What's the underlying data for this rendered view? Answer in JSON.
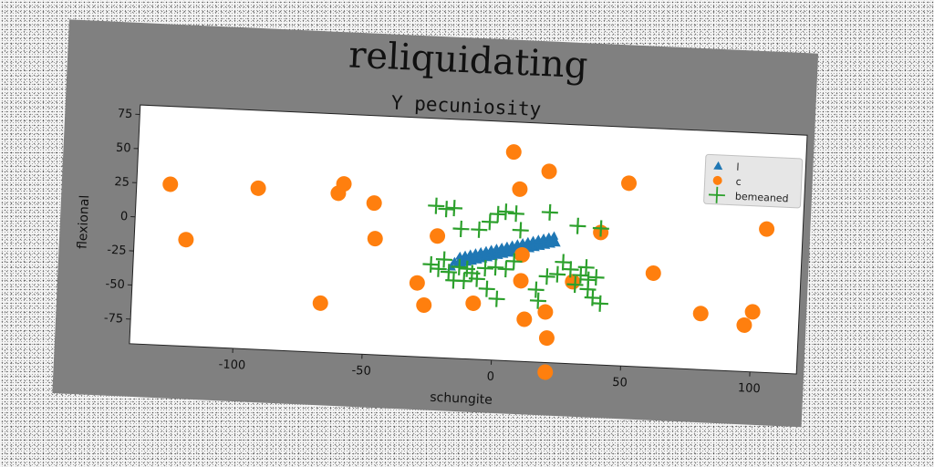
{
  "chart_data": {
    "type": "scatter",
    "title": "reliquidating",
    "subtitle": "Y pecuniosity",
    "xlabel": "schungite",
    "ylabel": "flexional",
    "xlim": [
      -140,
      118
    ],
    "ylim": [
      -93,
      82
    ],
    "xticks": [
      -100,
      -50,
      0,
      50,
      100
    ],
    "yticks": [
      75,
      50,
      25,
      0,
      -25,
      -50,
      -75
    ],
    "grid": false,
    "legend_position": "top-right",
    "series": [
      {
        "name": "l",
        "marker": "triangle",
        "color": "#1f77b4",
        "points": [
          [
            -17,
            -26
          ],
          [
            -15,
            -24
          ],
          [
            -13,
            -23
          ],
          [
            -11,
            -22
          ],
          [
            -9,
            -21
          ],
          [
            -7,
            -20
          ],
          [
            -5,
            -19
          ],
          [
            -3,
            -18
          ],
          [
            -1,
            -17
          ],
          [
            1,
            -16
          ],
          [
            3,
            -15
          ],
          [
            5,
            -14
          ],
          [
            7,
            -13
          ],
          [
            9,
            -12
          ],
          [
            11,
            -11
          ],
          [
            13,
            -10
          ],
          [
            15,
            -9
          ],
          [
            17,
            -8
          ],
          [
            19,
            -7
          ],
          [
            21,
            -6
          ],
          [
            23,
            -5
          ],
          [
            -16,
            -22
          ],
          [
            -14,
            -21
          ],
          [
            -12,
            -20
          ],
          [
            -10,
            -19
          ],
          [
            -8,
            -18
          ],
          [
            -6,
            -17
          ],
          [
            -4,
            -16
          ],
          [
            -2,
            -15
          ],
          [
            0,
            -14
          ],
          [
            2,
            -13
          ],
          [
            4,
            -12
          ],
          [
            6,
            -11
          ],
          [
            8,
            -10
          ],
          [
            10,
            -9
          ],
          [
            12,
            -8
          ],
          [
            14,
            -7
          ],
          [
            16,
            -6
          ],
          [
            18,
            -5
          ],
          [
            20,
            -4
          ],
          [
            22,
            -3
          ],
          [
            -14,
            -18
          ],
          [
            -12,
            -17
          ],
          [
            -10,
            -16
          ],
          [
            -8,
            -15
          ],
          [
            -6,
            -14
          ],
          [
            -4,
            -13
          ],
          [
            -2,
            -12
          ],
          [
            0,
            -11
          ],
          [
            2,
            -10
          ],
          [
            4,
            -9
          ],
          [
            6,
            -8
          ],
          [
            8,
            -7
          ],
          [
            10,
            -6
          ],
          [
            12,
            -5
          ],
          [
            14,
            -4
          ],
          [
            16,
            -3
          ],
          [
            18,
            -2
          ],
          [
            20,
            -1
          ],
          [
            22,
            0
          ]
        ]
      },
      {
        "name": "c",
        "marker": "circle",
        "color": "#ff7f0e",
        "points": [
          [
            -127,
            25
          ],
          [
            -120,
            -15
          ],
          [
            -93,
            25
          ],
          [
            -67,
            -57
          ],
          [
            -62,
            24
          ],
          [
            -60,
            31
          ],
          [
            -48,
            18
          ],
          [
            -47,
            -8
          ],
          [
            -30,
            -39
          ],
          [
            -27,
            -55
          ],
          [
            -23,
            -4
          ],
          [
            -8,
            -52
          ],
          [
            5,
            60
          ],
          [
            8,
            33
          ],
          [
            10,
            -15
          ],
          [
            10,
            -34
          ],
          [
            12,
            -62
          ],
          [
            19,
            47
          ],
          [
            20,
            -56
          ],
          [
            21,
            -75
          ],
          [
            21,
            -100
          ],
          [
            30,
            -33
          ],
          [
            40,
            4
          ],
          [
            50,
            41
          ],
          [
            61,
            -24
          ],
          [
            80,
            -52
          ],
          [
            97,
            -59
          ],
          [
            100,
            -49
          ],
          [
            104,
            12
          ]
        ]
      },
      {
        "name": "bemeaned",
        "marker": "plus",
        "color": "#2ca02c",
        "points": [
          [
            -24,
            18
          ],
          [
            -20,
            16
          ],
          [
            -17,
            17
          ],
          [
            -14,
            2
          ],
          [
            -7,
            2
          ],
          [
            -3,
            8
          ],
          [
            0,
            14
          ],
          [
            3,
            16
          ],
          [
            7,
            15
          ],
          [
            9,
            3
          ],
          [
            20,
            17
          ],
          [
            31,
            8
          ],
          [
            40,
            7
          ],
          [
            -25,
            -25
          ],
          [
            -22,
            -28
          ],
          [
            -20,
            -21
          ],
          [
            -18,
            -30
          ],
          [
            -16,
            -36
          ],
          [
            -14,
            -26
          ],
          [
            -12,
            -36
          ],
          [
            -11,
            -27
          ],
          [
            -9,
            -30
          ],
          [
            -7,
            -34
          ],
          [
            -4,
            -26
          ],
          [
            -3,
            -41
          ],
          [
            0,
            -25
          ],
          [
            1,
            -48
          ],
          [
            4,
            -26
          ],
          [
            7,
            -20
          ],
          [
            16,
            -40
          ],
          [
            17,
            -48
          ],
          [
            20,
            -30
          ],
          [
            24,
            -28
          ],
          [
            26,
            -19
          ],
          [
            29,
            -24
          ],
          [
            31,
            -35
          ],
          [
            33,
            -28
          ],
          [
            35,
            -22
          ],
          [
            36,
            -31
          ],
          [
            36,
            -38
          ],
          [
            38,
            -44
          ],
          [
            39,
            -29
          ],
          [
            41,
            -48
          ]
        ]
      }
    ]
  }
}
